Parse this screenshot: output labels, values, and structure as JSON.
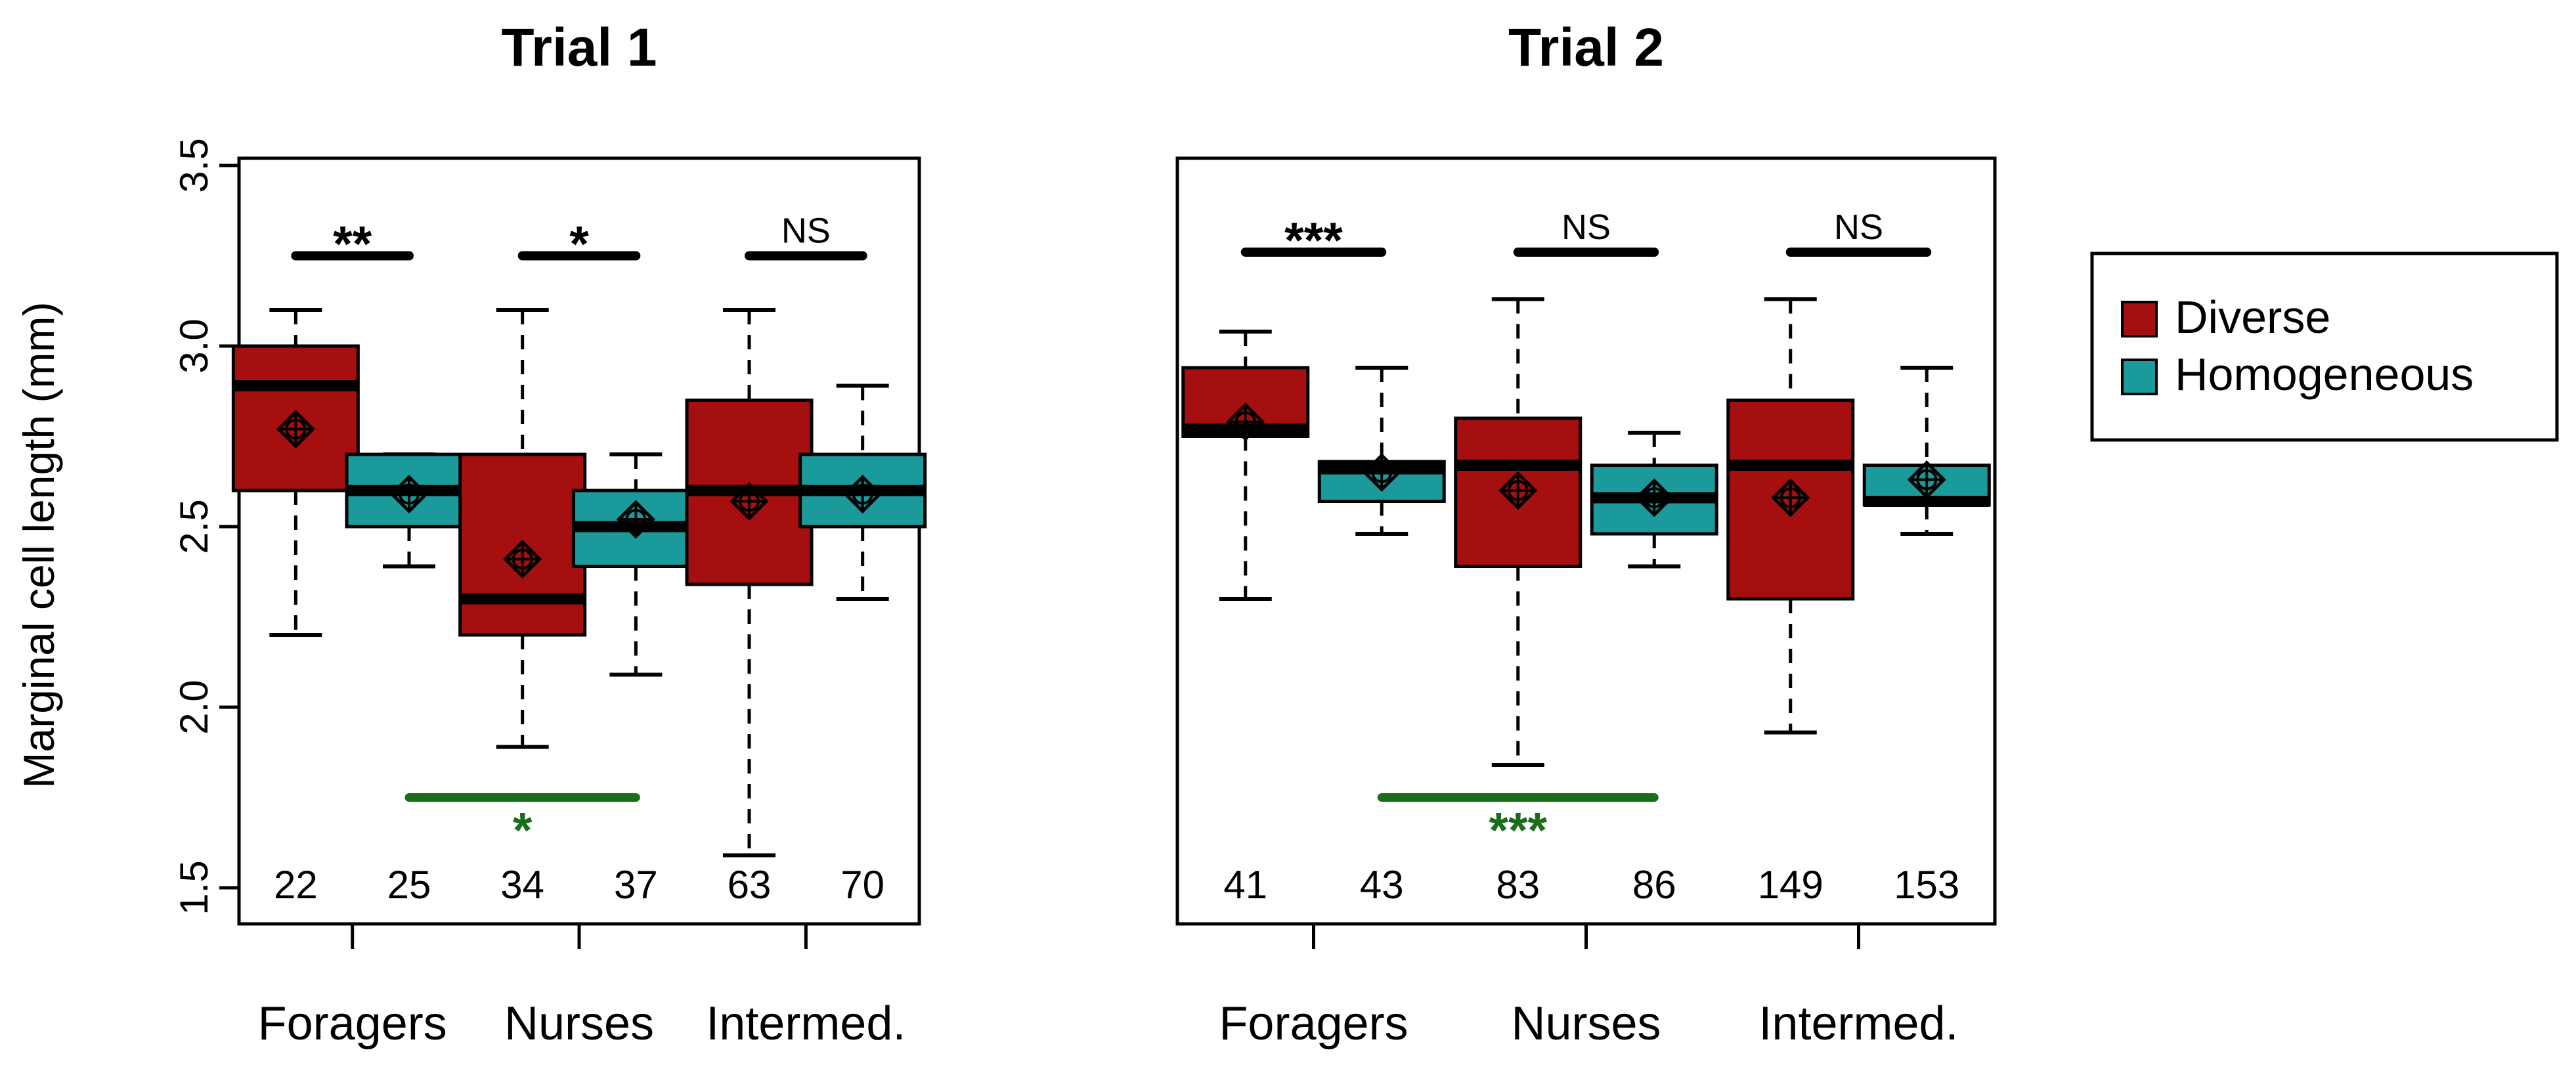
{
  "chart_data": {
    "type": "box",
    "ylabel": "Marginal cell length (mm)",
    "ylim": [
      1.5,
      3.5
    ],
    "yticks": [
      "1.5",
      "2.0",
      "2.5",
      "3.0",
      "3.5"
    ],
    "ytick_values": [
      1.5,
      2.0,
      2.5,
      3.0,
      3.5
    ],
    "categories": [
      "Foragers",
      "Nurses",
      "Intermed."
    ],
    "legend": {
      "position": "right",
      "entries": [
        {
          "name": "Diverse",
          "color": "#A50F0F"
        },
        {
          "name": "Homogeneous",
          "color": "#1A9A9A"
        }
      ]
    },
    "panels": [
      {
        "title": "Trial 1",
        "bracket_y": 3.25,
        "sig": [
          "**",
          "*",
          "NS"
        ],
        "cross": {
          "from_group": 1,
          "to_group": 3,
          "y": 1.75,
          "label": "*",
          "color": "#1A6E1A"
        },
        "boxes": [
          {
            "group": "Foragers",
            "series": "Diverse",
            "n": "22",
            "min": 2.2,
            "q1": 2.6,
            "median": 2.89,
            "q3": 3.0,
            "max": 3.1,
            "mean": 2.77
          },
          {
            "group": "Foragers",
            "series": "Homogeneous",
            "n": "25",
            "min": 2.39,
            "q1": 2.5,
            "median": 2.6,
            "q3": 2.7,
            "max": 2.7,
            "mean": 2.59
          },
          {
            "group": "Nurses",
            "series": "Diverse",
            "n": "34",
            "min": 1.89,
            "q1": 2.2,
            "median": 2.3,
            "q3": 2.7,
            "max": 3.1,
            "mean": 2.41
          },
          {
            "group": "Nurses",
            "series": "Homogeneous",
            "n": "37",
            "min": 2.09,
            "q1": 2.39,
            "median": 2.5,
            "q3": 2.6,
            "max": 2.7,
            "mean": 2.52
          },
          {
            "group": "Intermed.",
            "series": "Diverse",
            "n": "63",
            "min": 1.59,
            "q1": 2.34,
            "median": 2.6,
            "q3": 2.85,
            "max": 3.1,
            "mean": 2.57
          },
          {
            "group": "Intermed.",
            "series": "Homogeneous",
            "n": "70",
            "min": 2.3,
            "q1": 2.5,
            "median": 2.6,
            "q3": 2.7,
            "max": 2.89,
            "mean": 2.59
          }
        ]
      },
      {
        "title": "Trial 2",
        "bracket_y": 3.26,
        "sig": [
          "***",
          "NS",
          "NS"
        ],
        "cross": {
          "from_group": 1,
          "to_group": 3,
          "y": 1.75,
          "label": "***",
          "color": "#1A6E1A"
        },
        "boxes": [
          {
            "group": "Foragers",
            "series": "Diverse",
            "n": "41",
            "min": 2.3,
            "q1": 2.75,
            "median": 2.77,
            "q3": 2.94,
            "max": 3.04,
            "mean": 2.79
          },
          {
            "group": "Foragers",
            "series": "Homogeneous",
            "n": "43",
            "min": 2.48,
            "q1": 2.57,
            "median": 2.66,
            "q3": 2.68,
            "max": 2.94,
            "mean": 2.65
          },
          {
            "group": "Nurses",
            "series": "Diverse",
            "n": "83",
            "min": 1.84,
            "q1": 2.39,
            "median": 2.67,
            "q3": 2.8,
            "max": 3.13,
            "mean": 2.6
          },
          {
            "group": "Nurses",
            "series": "Homogeneous",
            "n": "86",
            "min": 2.39,
            "q1": 2.48,
            "median": 2.58,
            "q3": 2.67,
            "max": 2.76,
            "mean": 2.58
          },
          {
            "group": "Intermed.",
            "series": "Diverse",
            "n": "149",
            "min": 1.93,
            "q1": 2.3,
            "median": 2.67,
            "q3": 2.85,
            "max": 3.13,
            "mean": 2.58
          },
          {
            "group": "Intermed.",
            "series": "Homogeneous",
            "n": "153",
            "min": 2.48,
            "q1": 2.56,
            "median": 2.57,
            "q3": 2.67,
            "max": 2.94,
            "mean": 2.63
          }
        ]
      }
    ]
  }
}
